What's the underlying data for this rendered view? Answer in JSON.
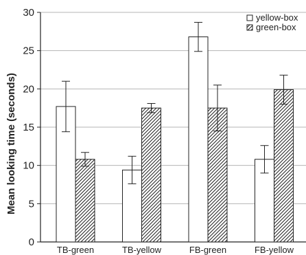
{
  "chart_data": {
    "type": "bar",
    "ylabel": "Mean looking time (seconds)",
    "xlabel": "",
    "ylim": [
      0,
      30
    ],
    "yticks": [
      0,
      5,
      10,
      15,
      20,
      25,
      30
    ],
    "categories": [
      "TB-green",
      "TB-yellow",
      "FB-green",
      "FB-yellow"
    ],
    "series": [
      {
        "name": "yellow-box",
        "fill": "plain",
        "values": [
          17.7,
          9.4,
          26.8,
          10.8
        ],
        "errors": [
          3.3,
          1.8,
          1.9,
          1.8
        ]
      },
      {
        "name": "green-box",
        "fill": "hatched",
        "values": [
          10.8,
          17.5,
          17.5,
          19.9
        ],
        "errors": [
          0.9,
          0.6,
          3.0,
          1.9
        ]
      }
    ],
    "legend_position": "top-right",
    "grid": "horizontal",
    "colors": {
      "bar_stroke": "#222222",
      "plain_fill": "#ffffff",
      "hatch": "#222222",
      "grid": "#b5b5b5",
      "axis": "#222222"
    }
  }
}
